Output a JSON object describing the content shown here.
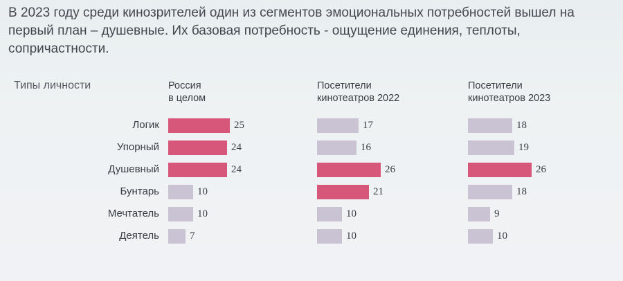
{
  "headline": {
    "line1": "В 2023 году среди кинозрителей один из сегментов эмоциональных потребностей вышел на",
    "line2": "первый план – душевные. Их базовая потребность - ощущение единения, теплоты, сопричастности."
  },
  "colors": {
    "highlight": "#d6577a",
    "muted": "#c9c3d3"
  },
  "chart_data": {
    "type": "bar",
    "title": "",
    "category_axis_label": "Типы личности",
    "categories": [
      "Логик",
      "Упорный",
      "Душевный",
      "Бунтарь",
      "Мечтатель",
      "Деятель"
    ],
    "series": [
      {
        "name_lines": [
          "Россия",
          "в целом"
        ],
        "values": [
          25,
          24,
          24,
          10,
          10,
          7
        ],
        "highlight": [
          true,
          true,
          true,
          false,
          false,
          false
        ]
      },
      {
        "name_lines": [
          "Посетители",
          "кинотеатров 2022"
        ],
        "values": [
          17,
          16,
          26,
          21,
          10,
          10
        ],
        "highlight": [
          false,
          false,
          true,
          true,
          false,
          false
        ]
      },
      {
        "name_lines": [
          "Посетители",
          "кинотеатров 2023"
        ],
        "values": [
          18,
          19,
          26,
          18,
          9,
          10
        ],
        "highlight": [
          false,
          false,
          true,
          false,
          false,
          false
        ]
      }
    ]
  }
}
